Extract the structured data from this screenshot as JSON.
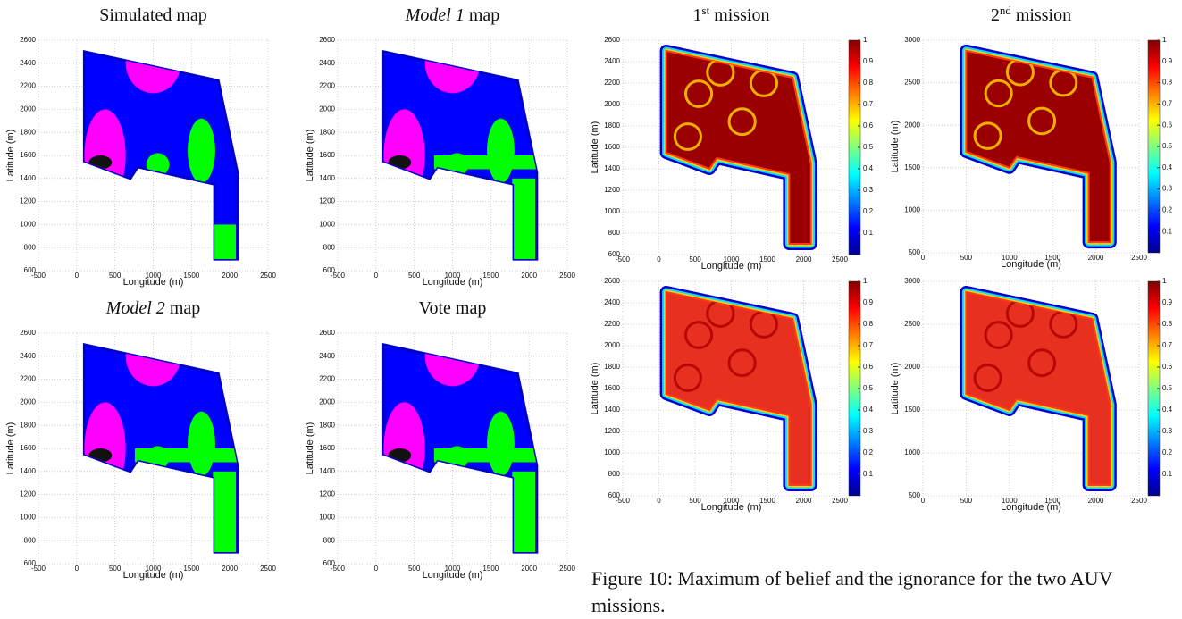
{
  "panels": [
    {
      "title": [
        {
          "text": "Simulated map"
        }
      ],
      "kind": "map",
      "variant": "sim",
      "xlabel": "Longitude (m)",
      "ylabel": "Latitude (m)",
      "xlim": [
        -500,
        2500
      ],
      "ylim": [
        600,
        2600
      ],
      "xticks": [
        -500,
        0,
        500,
        1000,
        1500,
        2000,
        2500
      ],
      "yticks": [
        600,
        800,
        1000,
        1200,
        1400,
        1600,
        1800,
        2000,
        2200,
        2400,
        2600
      ]
    },
    {
      "title": [
        {
          "text": "Model 1",
          "style": "italic"
        },
        {
          "text": "map"
        }
      ],
      "kind": "map",
      "variant": "model",
      "xlabel": "Longitude (m)",
      "ylabel": "Latitude (m)",
      "xlim": [
        -500,
        2500
      ],
      "ylim": [
        600,
        2600
      ],
      "xticks": [
        -500,
        0,
        500,
        1000,
        1500,
        2000,
        2500
      ],
      "yticks": [
        600,
        800,
        1000,
        1200,
        1400,
        1600,
        1800,
        2000,
        2200,
        2400,
        2600
      ]
    },
    {
      "title": [
        {
          "text": "Model 2",
          "style": "italic"
        },
        {
          "text": "map"
        }
      ],
      "kind": "map",
      "variant": "model",
      "xlabel": "Longitude (m)",
      "ylabel": "Latitude (m)",
      "xlim": [
        -500,
        2500
      ],
      "ylim": [
        600,
        2600
      ],
      "xticks": [
        -500,
        0,
        500,
        1000,
        1500,
        2000,
        2500
      ],
      "yticks": [
        600,
        800,
        1000,
        1200,
        1400,
        1600,
        1800,
        2000,
        2200,
        2400,
        2600
      ]
    },
    {
      "title": [
        {
          "text": "Vote map"
        }
      ],
      "kind": "map",
      "variant": "model",
      "xlabel": "Longitude (m)",
      "ylabel": "Latitude (m)",
      "xlim": [
        -500,
        2500
      ],
      "ylim": [
        600,
        2600
      ],
      "xticks": [
        -500,
        0,
        500,
        1000,
        1500,
        2000,
        2500
      ],
      "yticks": [
        600,
        800,
        1000,
        1200,
        1400,
        1600,
        1800,
        2000,
        2200,
        2400,
        2600
      ]
    },
    {
      "title": [
        {
          "text": "1"
        },
        {
          "text": "st",
          "style": "sup"
        },
        {
          "text": "mission"
        }
      ],
      "kind": "heat",
      "variant": "belief",
      "xlabel": "Longitude (m)",
      "ylabel": "Latitude (m)",
      "xlim": [
        -500,
        2500
      ],
      "ylim": [
        600,
        2600
      ],
      "xticks": [
        -500,
        0,
        500,
        1000,
        1500,
        2000,
        2500
      ],
      "yticks": [
        600,
        800,
        1000,
        1200,
        1400,
        1600,
        1800,
        2000,
        2200,
        2400,
        2600
      ]
    },
    {
      "title": [
        {
          "text": "2"
        },
        {
          "text": "nd",
          "style": "sup"
        },
        {
          "text": "mission"
        }
      ],
      "kind": "heat",
      "variant": "belief",
      "xlabel": "Longitude (m)",
      "ylabel": "Latitude (m)",
      "xlim": [
        0,
        2500
      ],
      "ylim": [
        500,
        3000
      ],
      "xticks": [
        0,
        500,
        1000,
        1500,
        2000,
        2500
      ],
      "yticks": [
        500,
        1000,
        1500,
        2000,
        2500,
        3000
      ]
    },
    {
      "kind": "heat",
      "variant": "ignorance",
      "xlabel": "Longitude (m)",
      "ylabel": "Latitude (m)",
      "xlim": [
        -500,
        2500
      ],
      "ylim": [
        600,
        2600
      ],
      "xticks": [
        -500,
        0,
        500,
        1000,
        1500,
        2000,
        2500
      ],
      "yticks": [
        600,
        800,
        1000,
        1200,
        1400,
        1600,
        1800,
        2000,
        2200,
        2400,
        2600
      ]
    },
    {
      "kind": "heat",
      "variant": "ignorance",
      "xlabel": "Longitude (m)",
      "ylabel": "Latitude (m)",
      "xlim": [
        0,
        2500
      ],
      "ylim": [
        500,
        3000
      ],
      "xticks": [
        0,
        500,
        1000,
        1500,
        2000,
        2500
      ],
      "yticks": [
        500,
        1000,
        1500,
        2000,
        2500,
        3000
      ]
    }
  ],
  "colorbar": {
    "lim": [
      0,
      1
    ],
    "ticks": [
      0.1,
      0.2,
      0.3,
      0.4,
      0.5,
      0.6,
      0.7,
      0.8,
      0.9,
      1
    ]
  },
  "caption": "Figure 10: Maximum of belief and the ignorance for the two AUV missions."
}
